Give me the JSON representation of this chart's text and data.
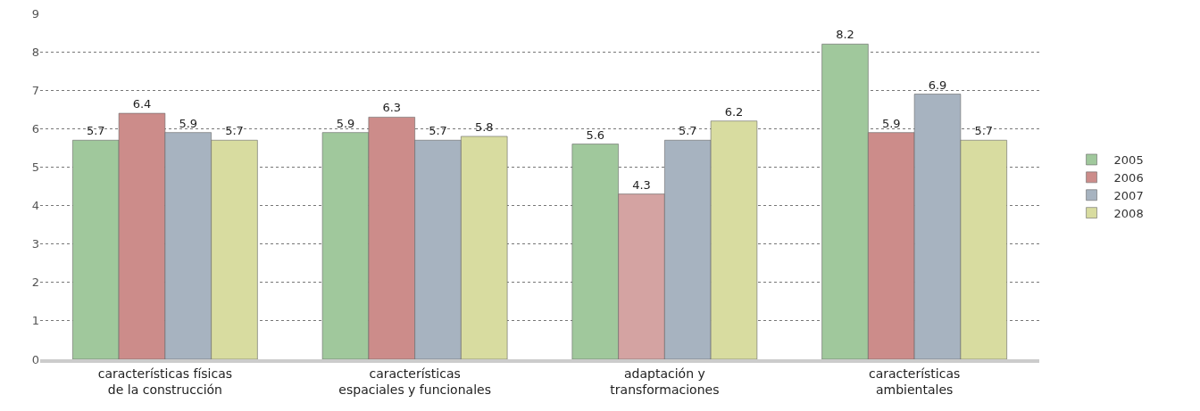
{
  "chart_data": {
    "type": "bar",
    "categories": [
      "características físicas\nde la construcción",
      "características\nespaciales y funcionales",
      "adaptación y\ntransformaciones",
      "características\nambientales"
    ],
    "series": [
      {
        "name": "2005",
        "color": "#a0c89c",
        "values": [
          5.7,
          5.9,
          5.6,
          8.2
        ]
      },
      {
        "name": "2006",
        "colors": [
          "#cc8c8a",
          "#cc8c8a",
          "#d4a3a2",
          "#cc8c8a"
        ],
        "values": [
          6.4,
          6.3,
          4.3,
          5.9
        ]
      },
      {
        "name": "2007",
        "color": "#a7b3c0",
        "values": [
          5.9,
          5.7,
          5.7,
          6.9
        ]
      },
      {
        "name": "2008",
        "color": "#d8dca0",
        "values": [
          5.7,
          5.8,
          6.2,
          5.7
        ]
      }
    ],
    "ylim": [
      0,
      9
    ],
    "yticks": [
      0,
      1,
      2,
      3,
      4,
      5,
      6,
      7,
      8,
      9
    ],
    "grid": "y",
    "legend": "right",
    "data_labels": true
  }
}
